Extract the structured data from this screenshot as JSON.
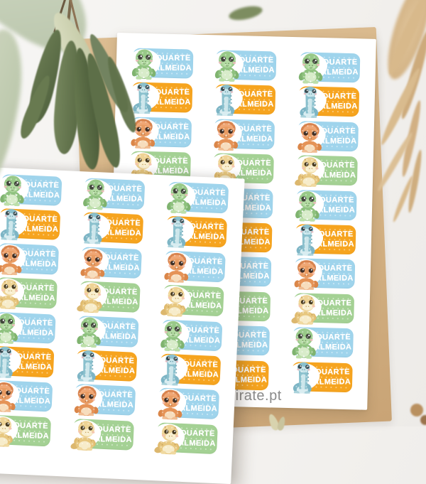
{
  "name_labels": {
    "line1": "DUARTE",
    "line2": "ALMEIDA"
  },
  "watermark": {
    "text": "pirate.pt"
  },
  "colors": {
    "blue": "#9fd4ec",
    "orange": "#f6a41f",
    "green": "#a4d194",
    "sheet_white": "#ffffff",
    "kraft_paper": "#d5b385",
    "background": "#f2f0ed",
    "label_text": "#ffffff",
    "watermark_gray": "#8a8a8a"
  },
  "sticker_cycle": [
    {
      "bg": "blue",
      "dino": "dino-trex-green"
    },
    {
      "bg": "orange",
      "dino": "dino-longneck-teal"
    },
    {
      "bg": "blue",
      "dino": "dino-triceratops-orange"
    },
    {
      "bg": "green",
      "dino": "dino-yellow"
    }
  ],
  "sheets": [
    {
      "id": "sheet-right",
      "rows": 10,
      "columns": 3,
      "start_cycle_index": 0
    },
    {
      "id": "sheet-tilted",
      "rows": 8,
      "columns": 3,
      "start_cycle_index": 0
    }
  ]
}
